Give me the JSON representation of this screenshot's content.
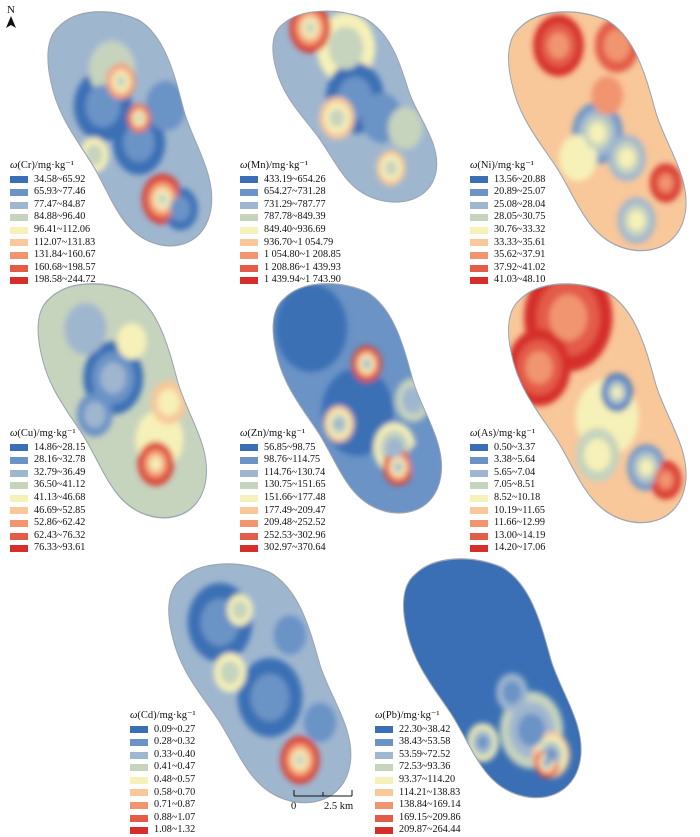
{
  "north_label": "N",
  "scale": {
    "zero": "0",
    "length": "2.5 km"
  },
  "palette": [
    "#3a6fb5",
    "#6b93c6",
    "#9fb6cf",
    "#c6d3bd",
    "#f6f1b8",
    "#f8c79a",
    "#f1946f",
    "#e35c48",
    "#d62f2b"
  ],
  "panels": [
    {
      "element": "Cr",
      "title_prefix": "ω",
      "title_rest": "(Cr)/mg·kg⁻¹",
      "ranges": [
        "34.58~65.92",
        "65.93~77.46",
        "77.47~84.87",
        "84.88~96.40",
        "96.41~112.06",
        "112.07~131.83",
        "131.84~160.67",
        "160.68~198.57",
        "198.58~244.72"
      ],
      "base_class": 2,
      "blobs": [
        [
          0.35,
          0.4,
          0.1,
          0
        ],
        [
          0.55,
          0.55,
          0.09,
          0
        ],
        [
          0.78,
          0.82,
          0.06,
          0
        ],
        [
          0.4,
          0.25,
          0.08,
          3
        ],
        [
          0.7,
          0.4,
          0.07,
          1
        ],
        [
          0.45,
          0.3,
          0.05,
          6
        ],
        [
          0.55,
          0.45,
          0.04,
          7
        ],
        [
          0.68,
          0.78,
          0.07,
          8
        ],
        [
          0.3,
          0.6,
          0.05,
          4
        ]
      ]
    },
    {
      "element": "Mn",
      "title_prefix": "ω",
      "title_rest": "(Mn)/mg·kg⁻¹",
      "ranges": [
        "433.19~654.26",
        "654.27~731.28",
        "731.29~787.77",
        "787.78~849.39",
        "849.40~936.69",
        "936.70~1 054.79",
        "1 054.80~1 208.85",
        "1 208.86~1 439.93",
        "1 439.94~1 743.90"
      ],
      "base_class": 2,
      "blobs": [
        [
          0.25,
          0.1,
          0.07,
          8
        ],
        [
          0.45,
          0.2,
          0.1,
          4
        ],
        [
          0.5,
          0.45,
          0.1,
          0
        ],
        [
          0.65,
          0.55,
          0.07,
          1
        ],
        [
          0.4,
          0.55,
          0.06,
          5
        ],
        [
          0.7,
          0.8,
          0.05,
          5
        ],
        [
          0.78,
          0.6,
          0.06,
          3
        ]
      ]
    },
    {
      "element": "Ni",
      "title_prefix": "ω",
      "title_rest": "(Ni)/mg·kg⁻¹",
      "ranges": [
        "13.56~20.88",
        "20.89~25.07",
        "25.08~28.04",
        "28.05~30.75",
        "30.76~33.32",
        "33.33~35.61",
        "35.62~37.91",
        "37.92~41.02",
        "41.03~48.10"
      ],
      "base_class": 5,
      "blobs": [
        [
          0.3,
          0.15,
          0.08,
          8
        ],
        [
          0.6,
          0.15,
          0.07,
          7
        ],
        [
          0.5,
          0.5,
          0.08,
          1
        ],
        [
          0.65,
          0.6,
          0.06,
          2
        ],
        [
          0.4,
          0.6,
          0.06,
          4
        ],
        [
          0.85,
          0.7,
          0.05,
          8
        ],
        [
          0.7,
          0.85,
          0.06,
          2
        ],
        [
          0.55,
          0.35,
          0.05,
          6
        ]
      ]
    },
    {
      "element": "Cu",
      "title_prefix": "ω",
      "title_rest": "(Cu)/mg·kg⁻¹",
      "ranges": [
        "14.86~28.15",
        "28.16~32.78",
        "32.79~36.49",
        "36.50~41.12",
        "41.13~46.68",
        "46.69~52.85",
        "52.86~62.42",
        "62.43~76.32",
        "76.33~93.61"
      ],
      "base_class": 3,
      "blobs": [
        [
          0.45,
          0.4,
          0.1,
          0
        ],
        [
          0.35,
          0.55,
          0.06,
          1
        ],
        [
          0.7,
          0.65,
          0.08,
          4
        ],
        [
          0.75,
          0.5,
          0.06,
          5
        ],
        [
          0.68,
          0.75,
          0.06,
          8
        ],
        [
          0.3,
          0.2,
          0.07,
          2
        ],
        [
          0.55,
          0.25,
          0.05,
          4
        ]
      ]
    },
    {
      "element": "Zn",
      "title_prefix": "ω",
      "title_rest": "(Zn)/mg·kg⁻¹",
      "ranges": [
        "56.85~98.75",
        "98.76~114.75",
        "114.76~130.74",
        "130.75~151.65",
        "151.66~177.48",
        "177.49~209.47",
        "209.48~252.52",
        "252.53~302.96",
        "302.97~370.64"
      ],
      "base_class": 1,
      "blobs": [
        [
          0.25,
          0.2,
          0.12,
          0
        ],
        [
          0.5,
          0.55,
          0.12,
          0
        ],
        [
          0.55,
          0.35,
          0.05,
          8
        ],
        [
          0.4,
          0.6,
          0.05,
          5
        ],
        [
          0.7,
          0.7,
          0.07,
          4
        ],
        [
          0.72,
          0.78,
          0.05,
          8
        ],
        [
          0.85,
          0.75,
          0.05,
          1
        ],
        [
          0.8,
          0.5,
          0.06,
          3
        ]
      ]
    },
    {
      "element": "As",
      "title_prefix": "ω",
      "title_rest": "(As)/mg·kg⁻¹",
      "ranges": [
        "0.50~3.37",
        "3.38~5.64",
        "5.65~7.04",
        "7.05~8.51",
        "8.52~10.18",
        "10.19~11.65",
        "11.66~12.99",
        "13.00~14.19",
        "14.20~17.06"
      ],
      "base_class": 5,
      "blobs": [
        [
          0.35,
          0.15,
          0.14,
          8
        ],
        [
          0.2,
          0.35,
          0.1,
          8
        ],
        [
          0.55,
          0.55,
          0.1,
          4
        ],
        [
          0.6,
          0.45,
          0.05,
          0
        ],
        [
          0.5,
          0.7,
          0.07,
          3
        ],
        [
          0.85,
          0.8,
          0.05,
          8
        ],
        [
          0.75,
          0.75,
          0.06,
          1
        ]
      ]
    },
    {
      "element": "Cd",
      "title_prefix": "ω",
      "title_rest": "(Cd)/mg·kg⁻¹",
      "ranges": [
        "0.09~0.27",
        "0.28~0.32",
        "0.33~0.40",
        "0.41~0.47",
        "0.48~0.57",
        "0.58~0.70",
        "0.71~0.87",
        "0.88~1.07",
        "1.08~1.32"
      ],
      "base_class": 2,
      "blobs": [
        [
          0.3,
          0.25,
          0.1,
          0
        ],
        [
          0.55,
          0.55,
          0.1,
          0
        ],
        [
          0.4,
          0.2,
          0.04,
          4
        ],
        [
          0.35,
          0.45,
          0.05,
          4
        ],
        [
          0.7,
          0.8,
          0.06,
          8
        ],
        [
          0.65,
          0.3,
          0.05,
          1
        ],
        [
          0.8,
          0.65,
          0.05,
          1
        ]
      ]
    },
    {
      "element": "Pb",
      "title_prefix": "ω",
      "title_rest": "(Pb)/mg·kg⁻¹",
      "ranges": [
        "22.30~38.42",
        "38.43~53.58",
        "53.59~72.52",
        "72.53~93.36",
        "93.37~114.20",
        "114.21~138.83",
        "138.84~169.14",
        "169.15~209.86",
        "209.87~264.44"
      ],
      "base_class": 0,
      "blobs": [
        [
          0.7,
          0.7,
          0.1,
          3
        ],
        [
          0.8,
          0.8,
          0.06,
          5
        ],
        [
          0.78,
          0.83,
          0.04,
          8
        ],
        [
          0.45,
          0.75,
          0.05,
          4
        ],
        [
          0.6,
          0.55,
          0.05,
          2
        ]
      ]
    }
  ]
}
